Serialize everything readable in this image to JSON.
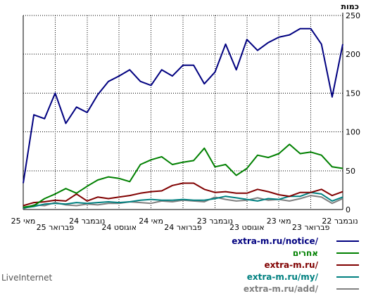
{
  "chart_data": {
    "type": "line",
    "ylabel": "כמות",
    "ylim": [
      0,
      250
    ],
    "yticks": [
      0,
      50,
      100,
      150,
      200,
      250
    ],
    "grid": true,
    "legend_position": "bottom-right",
    "x_tick_labels": [
      "מאי 25",
      "פברואר 25",
      "נובמבר 24",
      "אוגוסט 24",
      "מאי 24",
      "פברואר 24",
      "נובמבר 23",
      "אוגוסט 23",
      "מאי 23",
      "פברואר 23",
      "נובמבר 22"
    ],
    "series": [
      {
        "name": "extra-m.ru/notice/",
        "color": "#000080",
        "values": [
          213,
          145,
          213,
          233,
          233,
          225,
          222,
          215,
          205,
          219,
          180,
          213,
          177,
          162,
          186,
          186,
          172,
          180,
          160,
          165,
          180,
          172,
          165,
          148,
          125,
          132,
          111,
          150,
          117,
          122,
          34
        ]
      },
      {
        "name": "אחרים",
        "color": "#008000",
        "values": [
          53,
          55,
          70,
          74,
          72,
          84,
          72,
          67,
          70,
          53,
          44,
          58,
          55,
          79,
          63,
          61,
          58,
          68,
          64,
          58,
          36,
          40,
          42,
          38,
          30,
          21,
          27,
          20,
          14,
          5,
          3
        ]
      },
      {
        "name": "extra-m.ru/",
        "color": "#800000",
        "values": [
          23,
          18,
          26,
          22,
          22,
          17,
          19,
          23,
          26,
          21,
          21,
          23,
          22,
          26,
          34,
          34,
          31,
          24,
          23,
          21,
          18,
          16,
          14,
          16,
          11,
          20,
          11,
          12,
          10,
          9,
          5
        ]
      },
      {
        "name": "extra-m.ru/my/",
        "color": "#008080",
        "values": [
          16,
          11,
          20,
          22,
          17,
          17,
          13,
          14,
          11,
          13,
          15,
          17,
          14,
          12,
          12,
          13,
          12,
          12,
          13,
          12,
          10,
          9,
          10,
          9,
          8,
          9,
          7,
          8,
          7,
          4,
          2
        ]
      },
      {
        "name": "extra-m.ru/add/",
        "color": "#808080",
        "values": [
          14,
          8,
          16,
          18,
          14,
          11,
          13,
          12,
          15,
          12,
          11,
          13,
          16,
          10,
          11,
          12,
          10,
          11,
          8,
          9,
          10,
          8,
          8,
          6,
          7,
          5,
          6,
          9,
          5,
          6,
          1
        ]
      }
    ]
  },
  "legend": {
    "items": [
      {
        "label": "extra-m.ru/notice/",
        "color": "#000080"
      },
      {
        "label": "אחרים",
        "color": "#008000"
      },
      {
        "label": "extra-m.ru/",
        "color": "#800000"
      },
      {
        "label": "extra-m.ru/my/",
        "color": "#008080"
      },
      {
        "label": "extra-m.ru/add/",
        "color": "#808080"
      }
    ]
  },
  "brand": "LiveInternet"
}
